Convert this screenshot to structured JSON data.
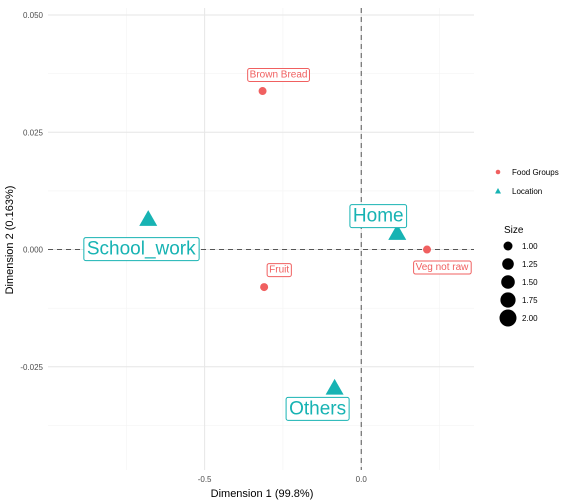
{
  "chart_data": {
    "type": "scatter",
    "xlabel": "Dimension 1 (99.8%)",
    "ylabel": "Dimension 2 (0.163%)",
    "xlim": [
      -1.0,
      0.36
    ],
    "ylim": [
      -0.047,
      0.0515
    ],
    "x_ticks": [
      -0.5,
      0.0
    ],
    "x_tick_labels": [
      "-0.5",
      "0.0"
    ],
    "y_ticks": [
      -0.025,
      0.0,
      0.025,
      0.05
    ],
    "y_tick_labels": [
      "-0.025",
      "0.000",
      "0.025",
      "0.050"
    ],
    "grid": true,
    "reference_lines": {
      "x": 0,
      "y": 0,
      "style": "dashed"
    },
    "colors": {
      "food_groups": "#f06060",
      "location": "#17b3b3"
    },
    "series": [
      {
        "name": "Food Groups",
        "marker": "circle",
        "points": [
          {
            "label": "Brown Bread",
            "x": -0.315,
            "y": 0.0338,
            "size": 1.0
          },
          {
            "label": "Fruit",
            "x": -0.31,
            "y": -0.008,
            "size": 1.0
          },
          {
            "label": "Veg not raw",
            "x": 0.21,
            "y": 0.0,
            "size": 1.0
          }
        ]
      },
      {
        "name": "Location",
        "marker": "triangle",
        "points": [
          {
            "label": "School_work",
            "x": -0.68,
            "y": 0.0065,
            "size": 2.0
          },
          {
            "label": "Home",
            "x": 0.115,
            "y": 0.0035,
            "size": 2.0
          },
          {
            "label": "Others",
            "x": -0.085,
            "y": -0.0295,
            "size": 2.0
          }
        ]
      }
    ],
    "legend": {
      "placement": "right",
      "groups_title": "",
      "groups": [
        {
          "label": "Food Groups",
          "marker": "circle",
          "color": "#f06060"
        },
        {
          "label": "Location",
          "marker": "triangle",
          "color": "#17b3b3"
        }
      ],
      "size_title": "Size",
      "sizes": [
        "1.00",
        "1.25",
        "1.50",
        "1.75",
        "2.00"
      ]
    }
  }
}
